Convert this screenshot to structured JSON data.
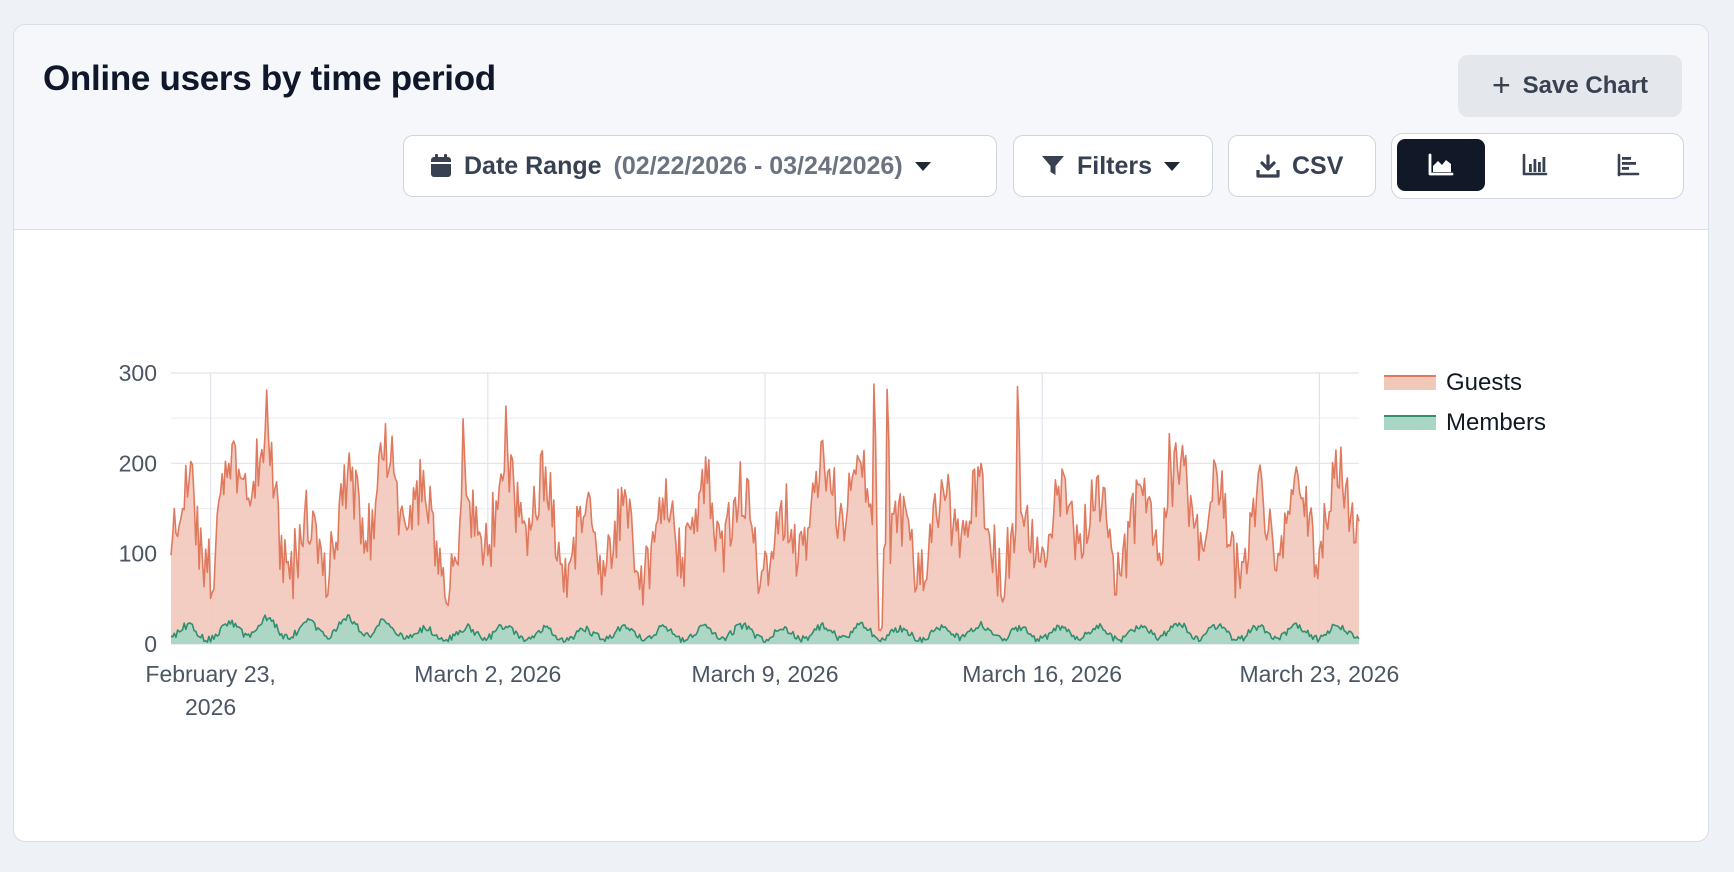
{
  "header": {
    "title": "Online users by time period",
    "save_label": "Save Chart",
    "date_range_label": "Date Range",
    "date_range_value": "(02/22/2026 - 03/24/2026)",
    "filters_label": "Filters",
    "csv_label": "CSV",
    "view_toggle": [
      "area-chart-icon",
      "bar-chart-icon",
      "horizontal-bar-icon"
    ],
    "active_view": 0
  },
  "colors": {
    "guests_line": "#e07a5f",
    "guests_fill": "#f2c8bb",
    "members_line": "#2f8f6f",
    "members_fill": "#a9d6c5",
    "accent_dark": "#111827"
  },
  "chart_data": {
    "type": "area",
    "stacked": true,
    "x_start": "2026-02-22",
    "x_end": "2026-03-24",
    "resolution": "hourly",
    "xtick_labels": [
      "February 23, 2026",
      "March 2, 2026",
      "March 9, 2026",
      "March 16, 2026",
      "March 23, 2026"
    ],
    "xtick_dates": [
      "2026-02-23",
      "2026-03-02",
      "2026-03-09",
      "2026-03-16",
      "2026-03-23"
    ],
    "ylim": [
      0,
      300
    ],
    "yticks": [
      0,
      100,
      200,
      300
    ],
    "grid": true,
    "legend_position": "right",
    "series": [
      {
        "name": "Guests",
        "daily_values": [
          150,
          95,
          205,
          85,
          105,
          150,
          160,
          80,
          130,
          155,
          100,
          110,
          95,
          120,
          140,
          90,
          120,
          180,
          95,
          90,
          150,
          95,
          120,
          135,
          90,
          135,
          145,
          100,
          135,
          130,
          150
        ],
        "peaks": [
          [
            "2026-02-24T10:00",
            255
          ],
          [
            "2026-03-01T09:00",
            236
          ],
          [
            "2026-03-02T11:00",
            244
          ],
          [
            "2026-03-11T18:00",
            278
          ],
          [
            "2026-03-12T02:00",
            272
          ],
          [
            "2026-03-15T09:00",
            271
          ],
          [
            "2026-03-19T05:00",
            218
          ]
        ]
      },
      {
        "name": "Members",
        "daily_values": [
          15,
          10,
          22,
          14,
          18,
          20,
          12,
          10,
          14,
          12,
          10,
          11,
          12,
          10,
          15,
          11,
          12,
          14,
          12,
          10,
          15,
          12,
          11,
          14,
          10,
          16,
          14,
          11,
          14,
          12,
          15
        ]
      }
    ]
  }
}
